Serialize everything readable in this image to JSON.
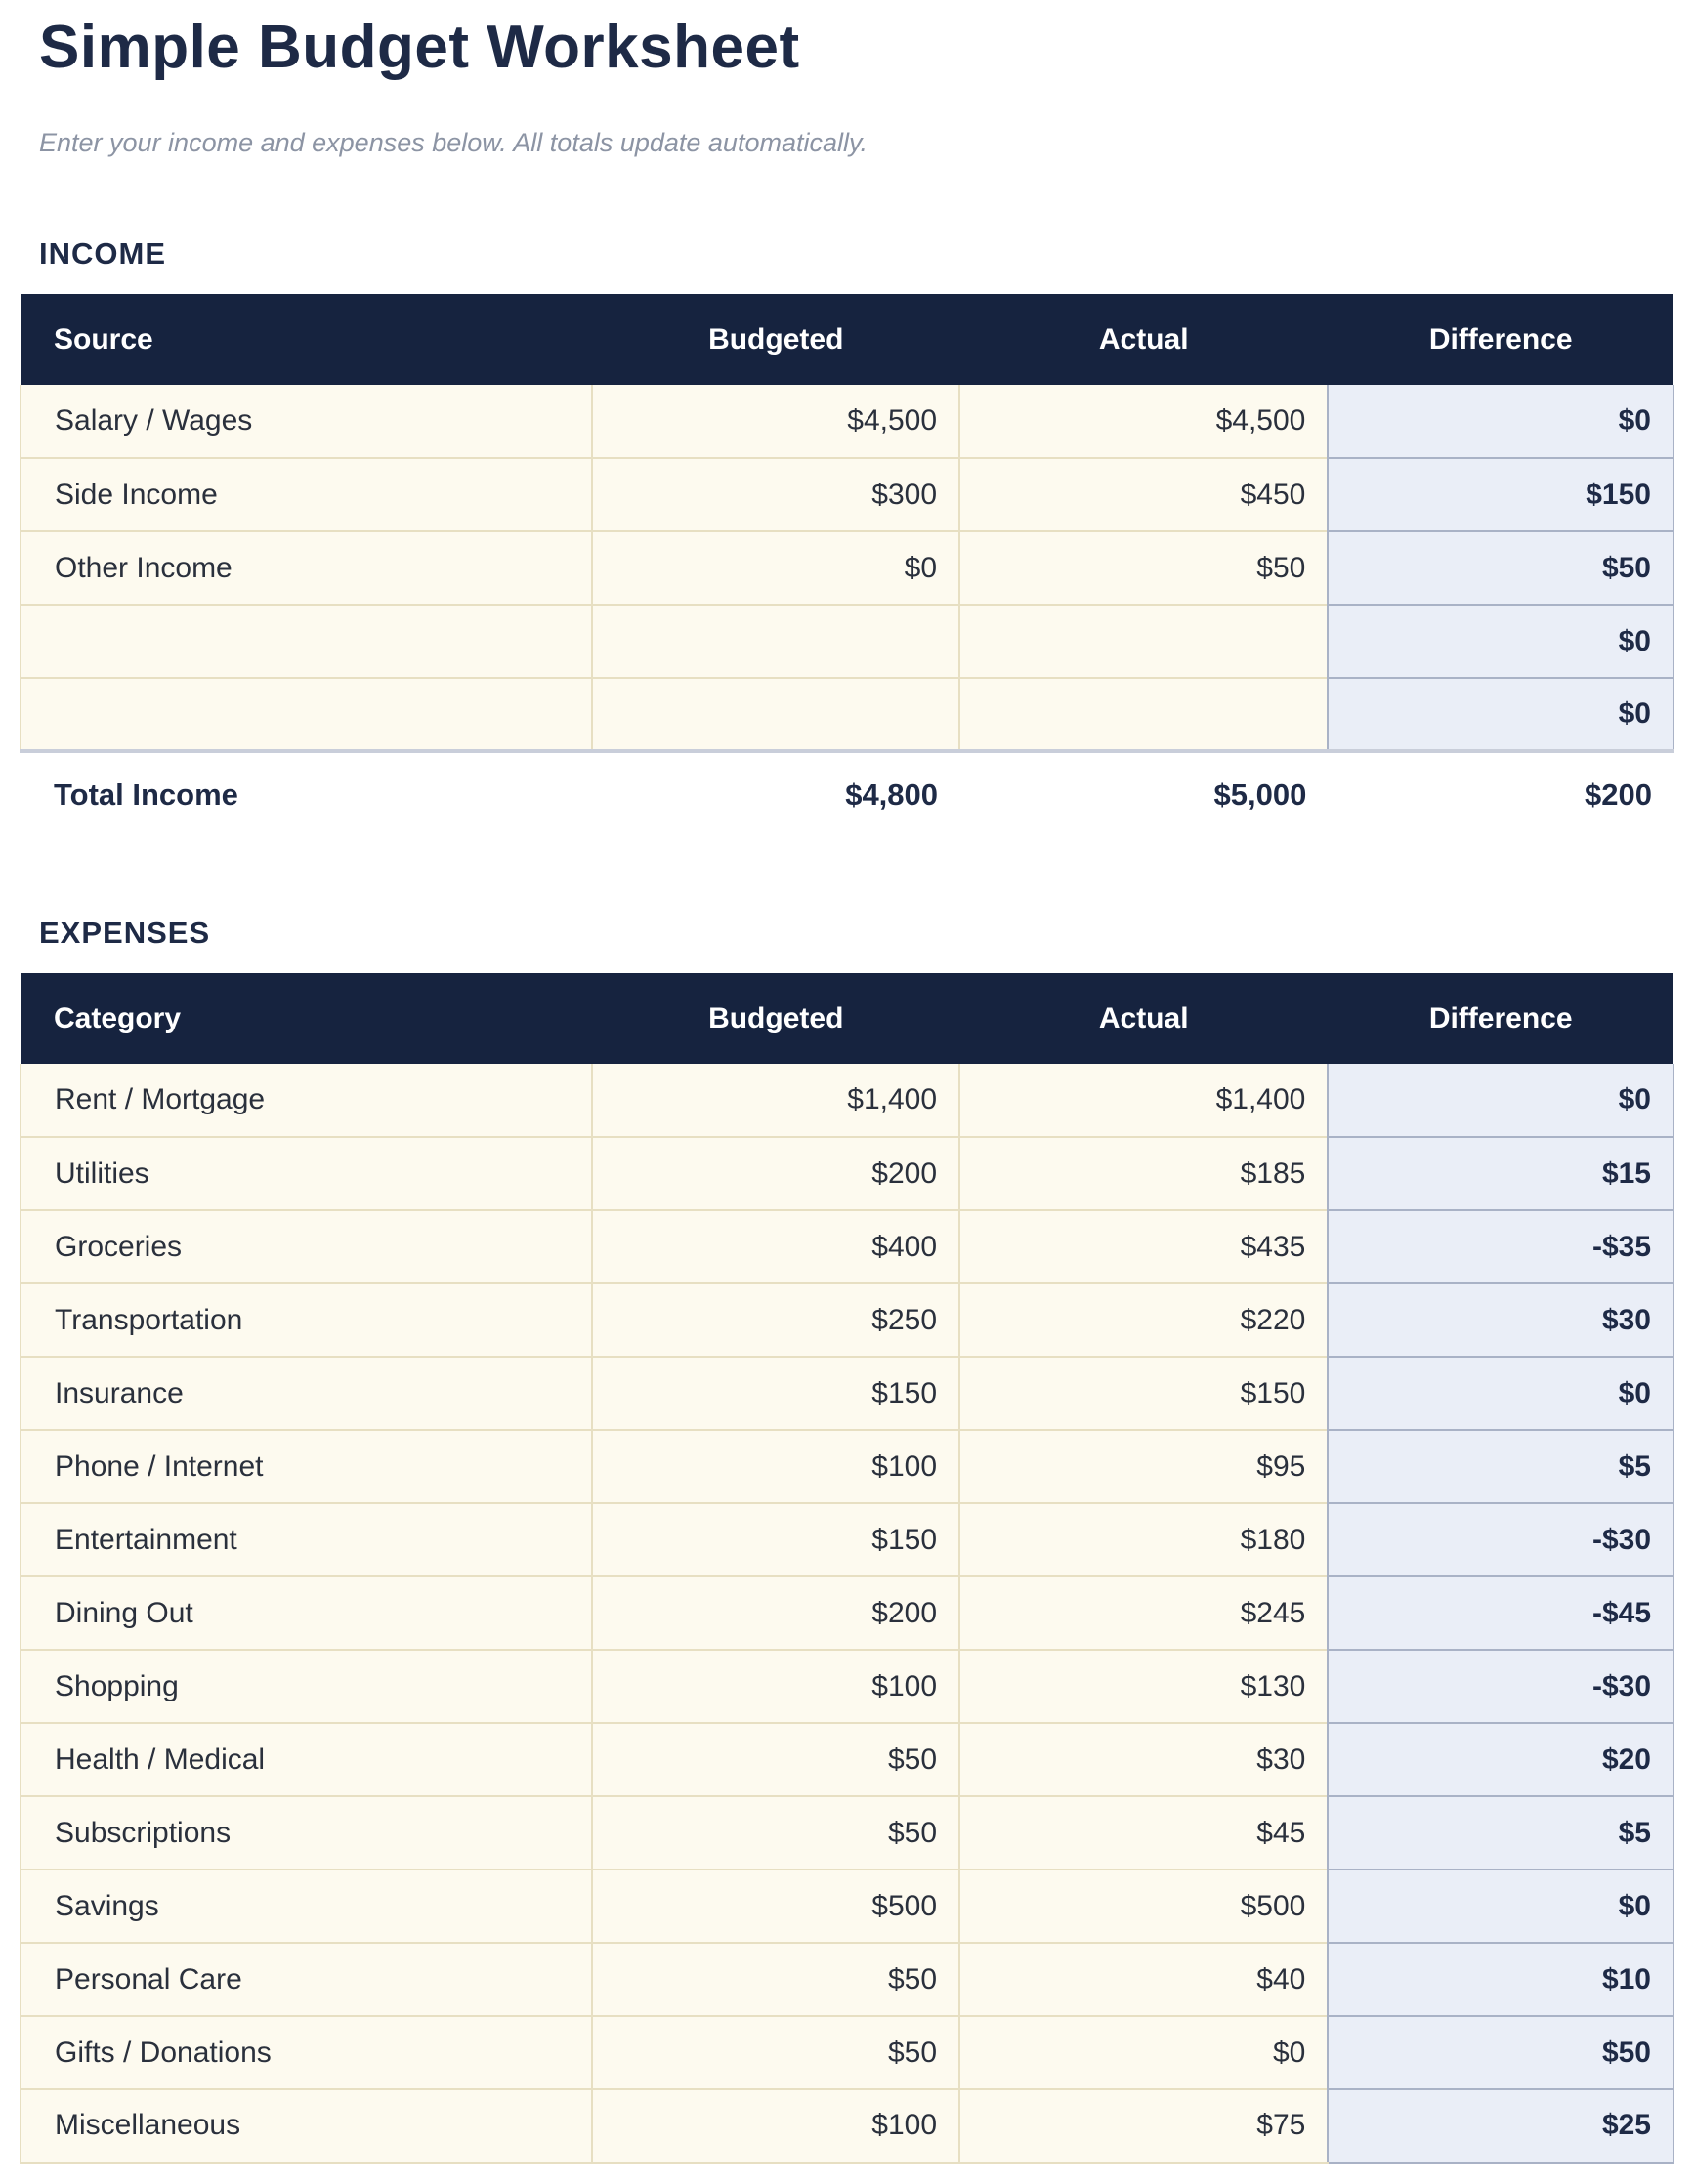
{
  "page": {
    "title": "Simple Budget Worksheet",
    "subtitle": "Enter your income and expenses below. All totals update automatically."
  },
  "colors": {
    "header_bg": "#16233F",
    "navy_text": "#1E2A46",
    "row_bg": "#FDFAEF",
    "row_border": "#E7DFC2",
    "diff_bg": "#EAEEF7",
    "diff_border": "#A9B2C6",
    "table_bottom_border": "#C9CEDA",
    "subtitle_text": "#8C94A4",
    "cell_text": "#2A303C"
  },
  "income": {
    "section_label": "INCOME",
    "columns": [
      "Source",
      "Budgeted",
      "Actual",
      "Difference"
    ],
    "rows": [
      {
        "label": "Salary / Wages",
        "budgeted": "$4,500",
        "actual": "$4,500",
        "difference": "$0"
      },
      {
        "label": "Side Income",
        "budgeted": "$300",
        "actual": "$450",
        "difference": "$150"
      },
      {
        "label": "Other Income",
        "budgeted": "$0",
        "actual": "$50",
        "difference": "$50"
      },
      {
        "label": "",
        "budgeted": "",
        "actual": "",
        "difference": "$0"
      },
      {
        "label": "",
        "budgeted": "",
        "actual": "",
        "difference": "$0"
      }
    ],
    "total": {
      "label": "Total Income",
      "budgeted": "$4,800",
      "actual": "$5,000",
      "difference": "$200"
    }
  },
  "expenses": {
    "section_label": "EXPENSES",
    "columns": [
      "Category",
      "Budgeted",
      "Actual",
      "Difference"
    ],
    "rows": [
      {
        "label": "Rent / Mortgage",
        "budgeted": "$1,400",
        "actual": "$1,400",
        "difference": "$0"
      },
      {
        "label": "Utilities",
        "budgeted": "$200",
        "actual": "$185",
        "difference": "$15"
      },
      {
        "label": "Groceries",
        "budgeted": "$400",
        "actual": "$435",
        "difference": "-$35"
      },
      {
        "label": "Transportation",
        "budgeted": "$250",
        "actual": "$220",
        "difference": "$30"
      },
      {
        "label": "Insurance",
        "budgeted": "$150",
        "actual": "$150",
        "difference": "$0"
      },
      {
        "label": "Phone / Internet",
        "budgeted": "$100",
        "actual": "$95",
        "difference": "$5"
      },
      {
        "label": "Entertainment",
        "budgeted": "$150",
        "actual": "$180",
        "difference": "-$30"
      },
      {
        "label": "Dining Out",
        "budgeted": "$200",
        "actual": "$245",
        "difference": "-$45"
      },
      {
        "label": "Shopping",
        "budgeted": "$100",
        "actual": "$130",
        "difference": "-$30"
      },
      {
        "label": "Health / Medical",
        "budgeted": "$50",
        "actual": "$30",
        "difference": "$20"
      },
      {
        "label": "Subscriptions",
        "budgeted": "$50",
        "actual": "$45",
        "difference": "$5"
      },
      {
        "label": "Savings",
        "budgeted": "$500",
        "actual": "$500",
        "difference": "$0"
      },
      {
        "label": "Personal Care",
        "budgeted": "$50",
        "actual": "$40",
        "difference": "$10"
      },
      {
        "label": "Gifts / Donations",
        "budgeted": "$50",
        "actual": "$0",
        "difference": "$50"
      },
      {
        "label": "Miscellaneous",
        "budgeted": "$100",
        "actual": "$75",
        "difference": "$25"
      }
    ]
  }
}
